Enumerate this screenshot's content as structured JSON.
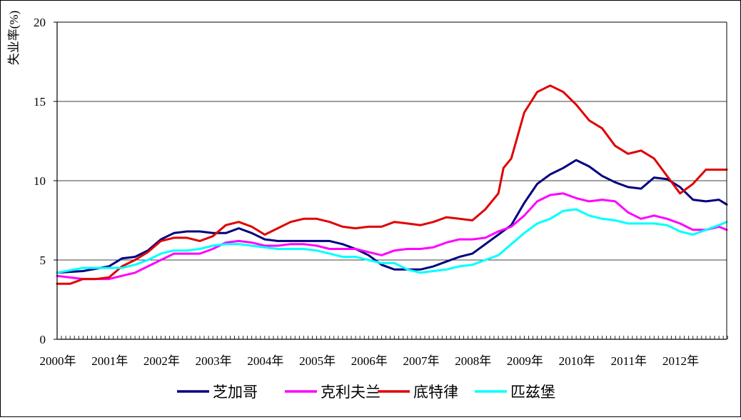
{
  "chart_data": {
    "type": "line",
    "title": "",
    "xlabel": "",
    "ylabel": "失业率(%)",
    "ylim": [
      0,
      20
    ],
    "yticks": [
      "0",
      "5",
      "10",
      "15",
      "20"
    ],
    "x_tick_labels": [
      "2000年",
      "2001年",
      "2002年",
      "2003年",
      "2004年",
      "2005年",
      "2006年",
      "2007年",
      "2008年",
      "2009年",
      "2010年",
      "2011年",
      "2012年"
    ],
    "x_start": 2000,
    "x_end": 2012.9,
    "grid": "horizontal",
    "legend_position": "bottom",
    "series": [
      {
        "name": "芝加哥",
        "color": "#00007f",
        "points": [
          [
            2000.0,
            4.2
          ],
          [
            2000.5,
            4.3
          ],
          [
            2001.0,
            4.6
          ],
          [
            2001.25,
            5.1
          ],
          [
            2001.5,
            5.2
          ],
          [
            2001.75,
            5.6
          ],
          [
            2002.0,
            6.3
          ],
          [
            2002.25,
            6.7
          ],
          [
            2002.5,
            6.8
          ],
          [
            2002.75,
            6.8
          ],
          [
            2003.0,
            6.7
          ],
          [
            2003.25,
            6.7
          ],
          [
            2003.5,
            7.0
          ],
          [
            2003.75,
            6.7
          ],
          [
            2004.0,
            6.3
          ],
          [
            2004.25,
            6.2
          ],
          [
            2004.5,
            6.2
          ],
          [
            2004.75,
            6.2
          ],
          [
            2005.0,
            6.2
          ],
          [
            2005.25,
            6.2
          ],
          [
            2005.5,
            6.0
          ],
          [
            2005.75,
            5.7
          ],
          [
            2006.0,
            5.3
          ],
          [
            2006.25,
            4.7
          ],
          [
            2006.5,
            4.4
          ],
          [
            2006.75,
            4.4
          ],
          [
            2007.0,
            4.4
          ],
          [
            2007.25,
            4.6
          ],
          [
            2007.5,
            4.9
          ],
          [
            2007.75,
            5.2
          ],
          [
            2008.0,
            5.4
          ],
          [
            2008.25,
            6.0
          ],
          [
            2008.5,
            6.6
          ],
          [
            2008.75,
            7.2
          ],
          [
            2009.0,
            8.6
          ],
          [
            2009.25,
            9.8
          ],
          [
            2009.5,
            10.4
          ],
          [
            2009.75,
            10.8
          ],
          [
            2010.0,
            11.3
          ],
          [
            2010.25,
            10.9
          ],
          [
            2010.5,
            10.3
          ],
          [
            2010.75,
            9.9
          ],
          [
            2011.0,
            9.6
          ],
          [
            2011.25,
            9.5
          ],
          [
            2011.5,
            10.2
          ],
          [
            2011.75,
            10.1
          ],
          [
            2012.0,
            9.6
          ],
          [
            2012.25,
            8.8
          ],
          [
            2012.5,
            8.7
          ],
          [
            2012.75,
            8.8
          ],
          [
            2012.9,
            8.5
          ]
        ]
      },
      {
        "name": "克利夫兰",
        "color": "#ff00ff",
        "points": [
          [
            2000.0,
            4.0
          ],
          [
            2000.5,
            3.8
          ],
          [
            2001.0,
            3.8
          ],
          [
            2001.25,
            4.0
          ],
          [
            2001.5,
            4.2
          ],
          [
            2001.75,
            4.6
          ],
          [
            2002.0,
            5.0
          ],
          [
            2002.25,
            5.4
          ],
          [
            2002.5,
            5.4
          ],
          [
            2002.75,
            5.4
          ],
          [
            2003.0,
            5.7
          ],
          [
            2003.25,
            6.1
          ],
          [
            2003.5,
            6.2
          ],
          [
            2003.75,
            6.1
          ],
          [
            2004.0,
            5.9
          ],
          [
            2004.25,
            5.9
          ],
          [
            2004.5,
            6.0
          ],
          [
            2004.75,
            6.0
          ],
          [
            2005.0,
            5.9
          ],
          [
            2005.25,
            5.7
          ],
          [
            2005.5,
            5.7
          ],
          [
            2005.75,
            5.7
          ],
          [
            2006.0,
            5.5
          ],
          [
            2006.25,
            5.3
          ],
          [
            2006.5,
            5.6
          ],
          [
            2006.75,
            5.7
          ],
          [
            2007.0,
            5.7
          ],
          [
            2007.25,
            5.8
          ],
          [
            2007.5,
            6.1
          ],
          [
            2007.75,
            6.3
          ],
          [
            2008.0,
            6.3
          ],
          [
            2008.25,
            6.4
          ],
          [
            2008.5,
            6.8
          ],
          [
            2008.75,
            7.1
          ],
          [
            2009.0,
            7.8
          ],
          [
            2009.25,
            8.7
          ],
          [
            2009.5,
            9.1
          ],
          [
            2009.75,
            9.2
          ],
          [
            2010.0,
            8.9
          ],
          [
            2010.25,
            8.7
          ],
          [
            2010.5,
            8.8
          ],
          [
            2010.75,
            8.7
          ],
          [
            2011.0,
            8.0
          ],
          [
            2011.25,
            7.6
          ],
          [
            2011.5,
            7.8
          ],
          [
            2011.75,
            7.6
          ],
          [
            2012.0,
            7.3
          ],
          [
            2012.25,
            6.9
          ],
          [
            2012.5,
            6.9
          ],
          [
            2012.75,
            7.1
          ],
          [
            2012.9,
            6.9
          ]
        ]
      },
      {
        "name": "底特律",
        "color": "#e00000",
        "points": [
          [
            2000.0,
            3.5
          ],
          [
            2000.25,
            3.5
          ],
          [
            2000.5,
            3.8
          ],
          [
            2000.75,
            3.8
          ],
          [
            2001.0,
            3.9
          ],
          [
            2001.25,
            4.6
          ],
          [
            2001.5,
            5.0
          ],
          [
            2001.75,
            5.5
          ],
          [
            2002.0,
            6.2
          ],
          [
            2002.25,
            6.4
          ],
          [
            2002.5,
            6.4
          ],
          [
            2002.75,
            6.2
          ],
          [
            2003.0,
            6.5
          ],
          [
            2003.25,
            7.2
          ],
          [
            2003.5,
            7.4
          ],
          [
            2003.75,
            7.1
          ],
          [
            2004.0,
            6.6
          ],
          [
            2004.25,
            7.0
          ],
          [
            2004.5,
            7.4
          ],
          [
            2004.75,
            7.6
          ],
          [
            2005.0,
            7.6
          ],
          [
            2005.25,
            7.4
          ],
          [
            2005.5,
            7.1
          ],
          [
            2005.75,
            7.0
          ],
          [
            2006.0,
            7.1
          ],
          [
            2006.25,
            7.1
          ],
          [
            2006.5,
            7.4
          ],
          [
            2006.75,
            7.3
          ],
          [
            2007.0,
            7.2
          ],
          [
            2007.25,
            7.4
          ],
          [
            2007.5,
            7.7
          ],
          [
            2007.75,
            7.6
          ],
          [
            2008.0,
            7.5
          ],
          [
            2008.25,
            8.2
          ],
          [
            2008.5,
            9.2
          ],
          [
            2008.6,
            10.8
          ],
          [
            2008.75,
            11.4
          ],
          [
            2009.0,
            14.3
          ],
          [
            2009.25,
            15.6
          ],
          [
            2009.5,
            16.0
          ],
          [
            2009.75,
            15.6
          ],
          [
            2010.0,
            14.8
          ],
          [
            2010.25,
            13.8
          ],
          [
            2010.5,
            13.3
          ],
          [
            2010.75,
            12.2
          ],
          [
            2011.0,
            11.7
          ],
          [
            2011.25,
            11.9
          ],
          [
            2011.5,
            11.4
          ],
          [
            2011.75,
            10.3
          ],
          [
            2012.0,
            9.2
          ],
          [
            2012.25,
            9.8
          ],
          [
            2012.5,
            10.7
          ],
          [
            2012.9,
            10.7
          ]
        ]
      },
      {
        "name": "匹兹堡",
        "color": "#00ffff",
        "points": [
          [
            2000.0,
            4.2
          ],
          [
            2000.5,
            4.5
          ],
          [
            2001.0,
            4.5
          ],
          [
            2001.25,
            4.5
          ],
          [
            2001.5,
            4.7
          ],
          [
            2001.75,
            5.0
          ],
          [
            2002.0,
            5.4
          ],
          [
            2002.25,
            5.6
          ],
          [
            2002.5,
            5.6
          ],
          [
            2002.75,
            5.7
          ],
          [
            2003.0,
            5.9
          ],
          [
            2003.25,
            6.0
          ],
          [
            2003.5,
            6.0
          ],
          [
            2003.75,
            5.9
          ],
          [
            2004.0,
            5.8
          ],
          [
            2004.25,
            5.7
          ],
          [
            2004.5,
            5.7
          ],
          [
            2004.75,
            5.7
          ],
          [
            2005.0,
            5.6
          ],
          [
            2005.25,
            5.4
          ],
          [
            2005.5,
            5.2
          ],
          [
            2005.75,
            5.2
          ],
          [
            2006.0,
            5.0
          ],
          [
            2006.25,
            4.8
          ],
          [
            2006.5,
            4.8
          ],
          [
            2006.75,
            4.4
          ],
          [
            2007.0,
            4.2
          ],
          [
            2007.25,
            4.3
          ],
          [
            2007.5,
            4.4
          ],
          [
            2007.75,
            4.6
          ],
          [
            2008.0,
            4.7
          ],
          [
            2008.25,
            5.0
          ],
          [
            2008.5,
            5.3
          ],
          [
            2008.75,
            6.0
          ],
          [
            2009.0,
            6.7
          ],
          [
            2009.25,
            7.3
          ],
          [
            2009.5,
            7.6
          ],
          [
            2009.75,
            8.1
          ],
          [
            2010.0,
            8.2
          ],
          [
            2010.25,
            7.8
          ],
          [
            2010.5,
            7.6
          ],
          [
            2010.75,
            7.5
          ],
          [
            2011.0,
            7.3
          ],
          [
            2011.25,
            7.3
          ],
          [
            2011.5,
            7.3
          ],
          [
            2011.75,
            7.2
          ],
          [
            2012.0,
            6.8
          ],
          [
            2012.25,
            6.6
          ],
          [
            2012.5,
            6.9
          ],
          [
            2012.75,
            7.2
          ],
          [
            2012.9,
            7.4
          ]
        ]
      }
    ]
  }
}
